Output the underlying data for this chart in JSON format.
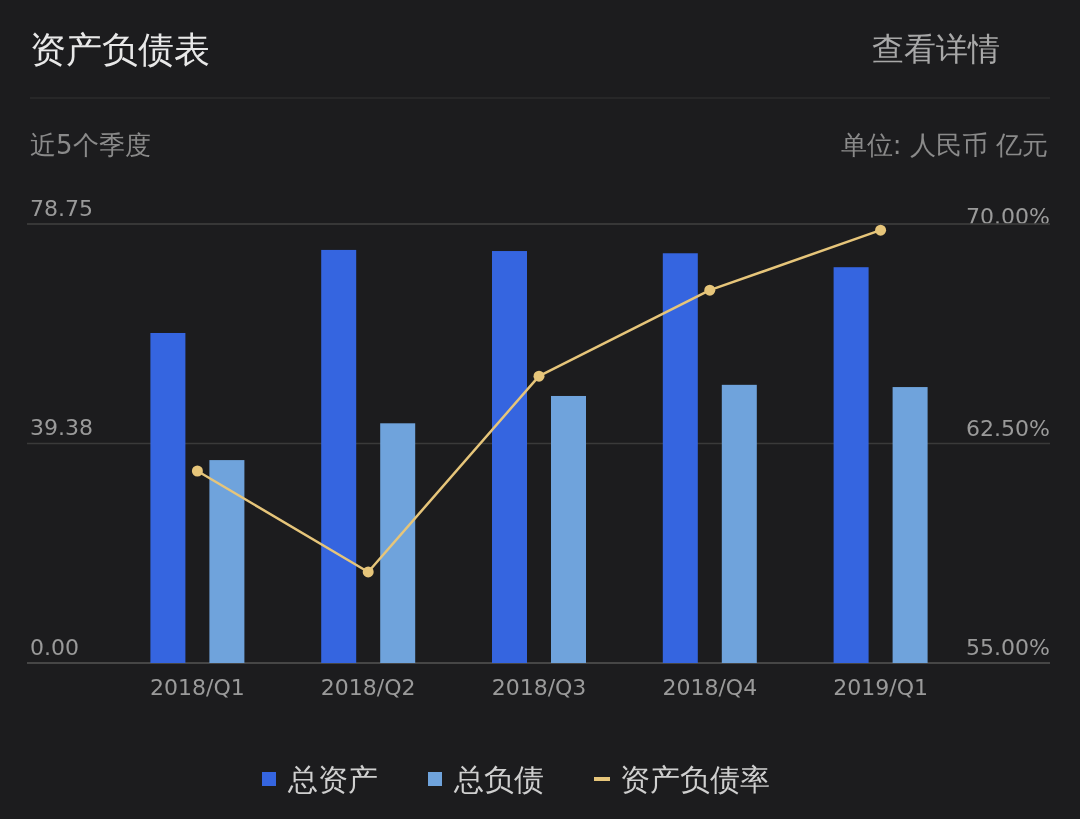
{
  "chart_data": {
    "type": "bar",
    "title": "资产负债表",
    "subtitle": "近5个季度",
    "annotations": [
      "查看详情",
      "单位: 人民币 亿元"
    ],
    "categories": [
      "2018/Q1",
      "2018/Q2",
      "2018/Q3",
      "2018/Q4",
      "2019/Q1"
    ],
    "series": [
      {
        "name": "总资产",
        "color": "#3565e0",
        "values": [
          59.2,
          74.1,
          73.9,
          73.5,
          71.0
        ]
      },
      {
        "name": "总负债",
        "color": "#6fa3dc",
        "values": [
          36.4,
          43.0,
          47.9,
          49.9,
          49.5
        ]
      },
      {
        "name": "资产负债率",
        "type": "line",
        "axis": "y2",
        "color": "#e6c57a",
        "values": [
          61.56,
          58.11,
          64.8,
          67.74,
          69.79
        ]
      }
    ],
    "ylim": [
      0,
      78.75
    ],
    "yticks": [
      {
        "value": 0,
        "label": "0.00"
      },
      {
        "value": 39.38,
        "label": "39.38"
      },
      {
        "value": 78.75,
        "label": "78.75"
      }
    ],
    "y2lim": [
      55,
      70
    ],
    "y2ticks": [
      {
        "value": 55,
        "label": "55.00%"
      },
      {
        "value": 62.5,
        "label": "62.50%"
      },
      {
        "value": 70,
        "label": "70.00%"
      }
    ],
    "grid": "y",
    "legend": "bottom",
    "marker": "circle"
  }
}
